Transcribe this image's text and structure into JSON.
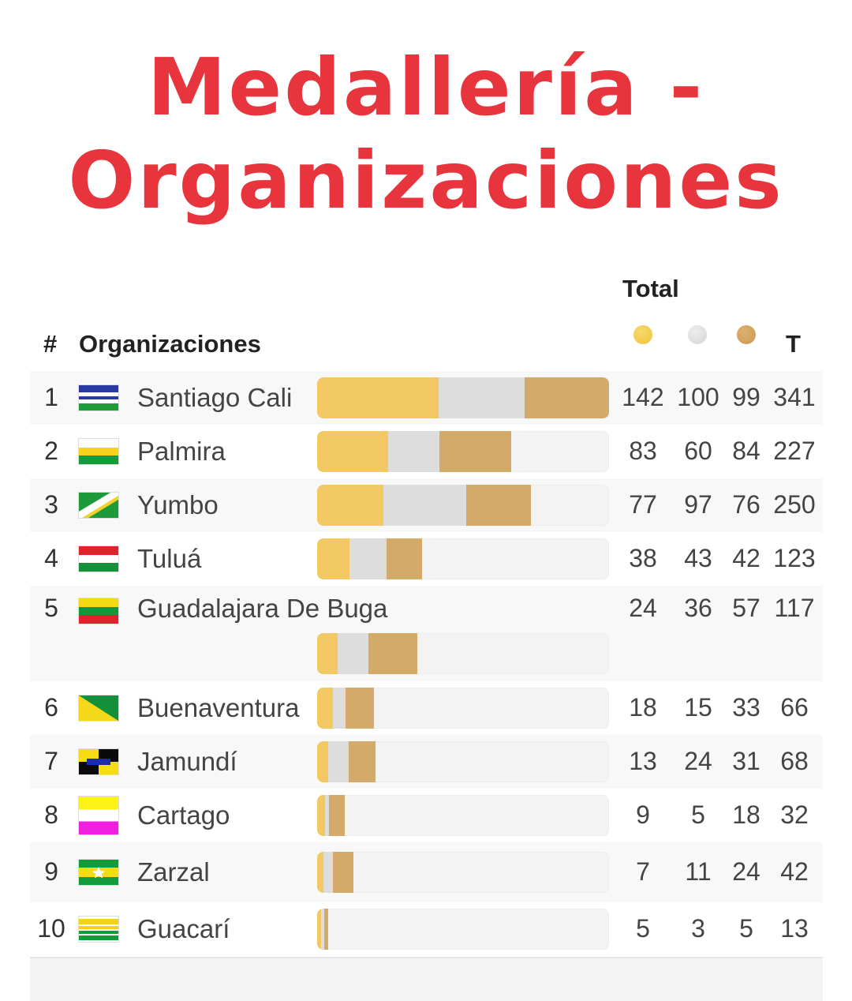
{
  "title": "Medallería - Organizaciones",
  "header": {
    "total_label": "Total",
    "rank_label": "#",
    "org_label": "Organizaciones",
    "t_label": "T"
  },
  "icons": {
    "gold": "gold-medal-icon",
    "silver": "silver-medal-icon",
    "bronze": "bronze-medal-icon"
  },
  "colors": {
    "title": "#e8353d",
    "gold": "#f2c862",
    "silver": "#dddddd",
    "bronze": "#d4aa6a"
  },
  "bar_max_total": 341,
  "rows": [
    {
      "rank": "1",
      "name": "Santiago Cali",
      "flag": "cali",
      "gold": 142,
      "silver": 100,
      "bronze": 99,
      "total": 341
    },
    {
      "rank": "2",
      "name": "Palmira",
      "flag": "palmira",
      "gold": 83,
      "silver": 60,
      "bronze": 84,
      "total": 227
    },
    {
      "rank": "3",
      "name": "Yumbo",
      "flag": "yumbo",
      "gold": 77,
      "silver": 97,
      "bronze": 76,
      "total": 250
    },
    {
      "rank": "4",
      "name": "Tuluá",
      "flag": "tulua",
      "gold": 38,
      "silver": 43,
      "bronze": 42,
      "total": 123
    },
    {
      "rank": "5",
      "name": "Guadalajara De Buga",
      "flag": "buga",
      "gold": 24,
      "silver": 36,
      "bronze": 57,
      "total": 117
    },
    {
      "rank": "6",
      "name": "Buenaventura",
      "flag": "buenaventura",
      "gold": 18,
      "silver": 15,
      "bronze": 33,
      "total": 66
    },
    {
      "rank": "7",
      "name": "Jamundí",
      "flag": "jamundi",
      "gold": 13,
      "silver": 24,
      "bronze": 31,
      "total": 68
    },
    {
      "rank": "8",
      "name": "Cartago",
      "flag": "cartago",
      "gold": 9,
      "silver": 5,
      "bronze": 18,
      "total": 32
    },
    {
      "rank": "9",
      "name": "Zarzal",
      "flag": "zarzal",
      "gold": 7,
      "silver": 11,
      "bronze": 24,
      "total": 42
    },
    {
      "rank": "10",
      "name": "Guacarí",
      "flag": "guacari",
      "gold": 5,
      "silver": 3,
      "bronze": 5,
      "total": 13
    }
  ]
}
